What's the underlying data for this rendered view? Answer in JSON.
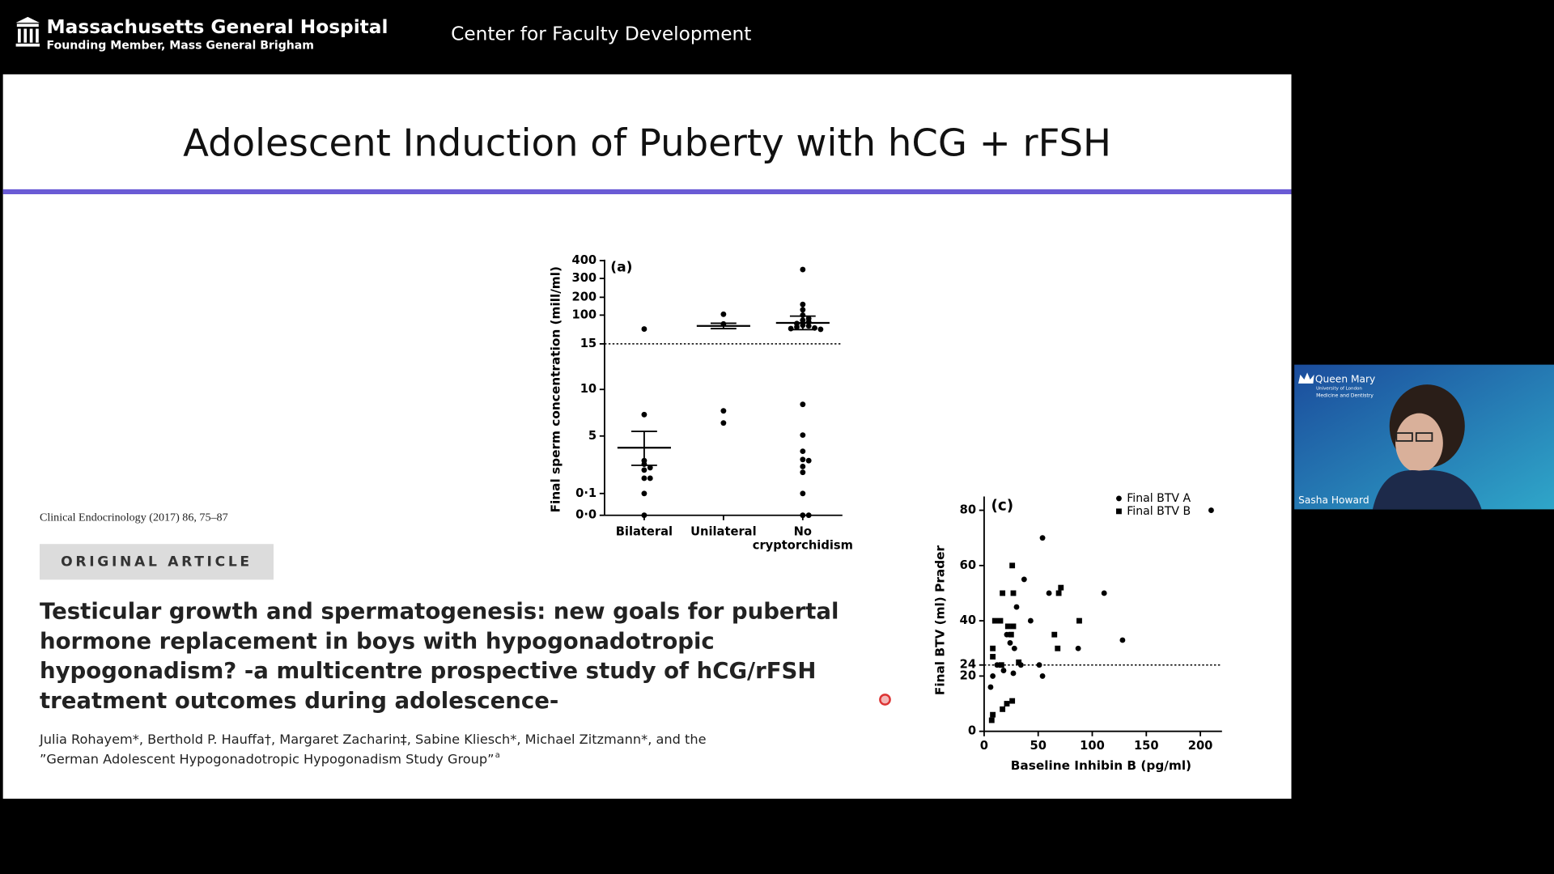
{
  "header": {
    "org": "Massachusetts General Hospital",
    "org_sub": "Founding Member, Mass General Brigham",
    "center": "Center for Faculty Development"
  },
  "slide": {
    "title": "Adolescent Induction of Puberty with hCG + rFSH",
    "citation": "Clinical Endocrinology (2017) 86, 75–87",
    "badge": "ORIGINAL ARTICLE",
    "article_title_lines": [
      "Testicular growth and spermatogenesis: new goals for pubertal",
      "hormone replacement in boys with hypogonadotropic",
      "hypogonadism? -a multicentre prospective study of hCG/rFSH",
      "treatment outcomes during adolescence-"
    ],
    "authors_lines": [
      "Julia Rohayem*, Berthold P. Hauffa†, Margaret Zacharin‡, Sabine Kliesch*, Michael Zitzmann*, and the",
      "”German Adolescent Hypogonadotropic Hypogonadism Study Group”"
    ],
    "authors_sup": "a"
  },
  "chart_data": [
    {
      "type": "strip",
      "panel": "(a)",
      "ylabel": "Final sperm concentration (mill/ml)",
      "categories": [
        "Bilateral",
        "Unilateral",
        "No cryptorchidism"
      ],
      "values": [
        [
          59,
          7.3,
          2.9,
          2.6,
          2.3,
          2.1,
          1.4,
          1.4,
          0.1,
          0
        ],
        [
          105,
          74,
          7.7,
          6.4
        ],
        [
          350,
          160,
          130,
          100,
          90,
          85,
          80,
          75,
          70,
          68,
          65,
          62,
          60,
          58,
          8.4,
          5.1,
          3.7,
          3.0,
          2.9,
          2.4,
          1.9,
          0.1,
          0,
          0
        ]
      ],
      "means": [
        4.0,
        68,
        77
      ],
      "errors": [
        1.5,
        8,
        20
      ],
      "reference_line": 15,
      "yticks": [
        {
          "value": 0,
          "label": "0·0"
        },
        {
          "value": 0.1,
          "label": "0·1"
        },
        5,
        10,
        15,
        100,
        200,
        300,
        400
      ],
      "color": "#000000"
    },
    {
      "type": "scatter",
      "panel": "(c)",
      "xlabel": "Baseline Inhibin B (pg/ml)",
      "ylabel": "Final BTV (ml) Prader",
      "xlim": [
        0,
        220
      ],
      "ylim": [
        0,
        85
      ],
      "xticks": [
        0,
        50,
        100,
        150,
        200
      ],
      "yticks": [
        0,
        20,
        24,
        40,
        60,
        80
      ],
      "reference_line": 24,
      "legend": "top-right",
      "series": [
        {
          "name": "Final BTV A",
          "marker": "circle",
          "color": "#000000",
          "x": [
            54,
            37,
            60,
            111,
            128,
            87,
            43,
            30,
            21,
            24,
            28,
            51,
            54,
            8,
            6,
            12,
            18,
            27,
            34,
            210
          ],
          "y": [
            70,
            55,
            50,
            50,
            33,
            30,
            40,
            45,
            35,
            32,
            30,
            24,
            20,
            20,
            16,
            24,
            22,
            21,
            24,
            80
          ]
        },
        {
          "name": "Final BTV B",
          "marker": "square",
          "color": "#000000",
          "x": [
            26,
            17,
            27,
            71,
            69,
            10,
            15,
            22,
            27,
            25,
            65,
            88,
            68,
            8,
            8,
            16,
            32,
            26,
            21,
            17,
            8,
            7
          ],
          "y": [
            60,
            50,
            50,
            52,
            50,
            40,
            40,
            38,
            38,
            35,
            35,
            40,
            30,
            30,
            27,
            24,
            25,
            11,
            10,
            8,
            6,
            4
          ]
        }
      ]
    }
  ],
  "video": {
    "brand": "Queen Mary",
    "brand_sub1": "University of London",
    "brand_sub2": "Medicine and Dentistry",
    "participant": "Sasha Howard"
  }
}
